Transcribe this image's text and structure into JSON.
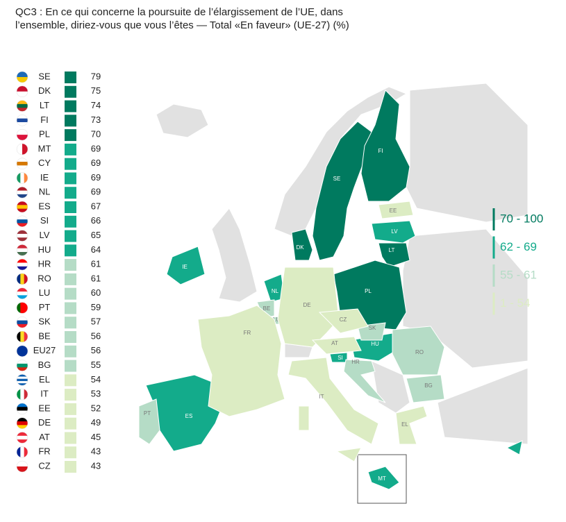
{
  "title": [
    "QC3 : En ce qui concerne la poursuite de l’élargissement de l’UE, dans",
    "l’ensemble, diriez-vous que vous l’êtes — Total «En faveur» (UE-27) (%)"
  ],
  "rows": [
    {
      "code": "SE",
      "value": 79
    },
    {
      "code": "DK",
      "value": 75
    },
    {
      "code": "LT",
      "value": 74
    },
    {
      "code": "FI",
      "value": 73
    },
    {
      "code": "PL",
      "value": 70
    },
    {
      "code": "MT",
      "value": 69
    },
    {
      "code": "CY",
      "value": 69
    },
    {
      "code": "IE",
      "value": 69
    },
    {
      "code": "NL",
      "value": 69
    },
    {
      "code": "ES",
      "value": 67
    },
    {
      "code": "SI",
      "value": 66
    },
    {
      "code": "LV",
      "value": 65
    },
    {
      "code": "HU",
      "value": 64
    },
    {
      "code": "HR",
      "value": 61
    },
    {
      "code": "RO",
      "value": 61
    },
    {
      "code": "LU",
      "value": 60
    },
    {
      "code": "PT",
      "value": 59
    },
    {
      "code": "SK",
      "value": 57
    },
    {
      "code": "BE",
      "value": 56
    },
    {
      "code": "EU27",
      "value": 56
    },
    {
      "code": "BG",
      "value": 55
    },
    {
      "code": "EL",
      "value": 54
    },
    {
      "code": "IT",
      "value": 53
    },
    {
      "code": "EE",
      "value": 52
    },
    {
      "code": "DE",
      "value": 49
    },
    {
      "code": "AT",
      "value": 45
    },
    {
      "code": "FR",
      "value": 43
    },
    {
      "code": "CZ",
      "value": 43
    }
  ],
  "legend": [
    {
      "label": "70 - 100",
      "min": 70,
      "max": 100,
      "color": "#007a5f"
    },
    {
      "label": "62 - 69",
      "min": 62,
      "max": 69,
      "color": "#13ab8b"
    },
    {
      "label": "55 - 61",
      "min": 55,
      "max": 61,
      "color": "#b5dcc6"
    },
    {
      "label": "1 - 54",
      "min": 1,
      "max": 54,
      "color": "#dcecc3"
    }
  ]
}
